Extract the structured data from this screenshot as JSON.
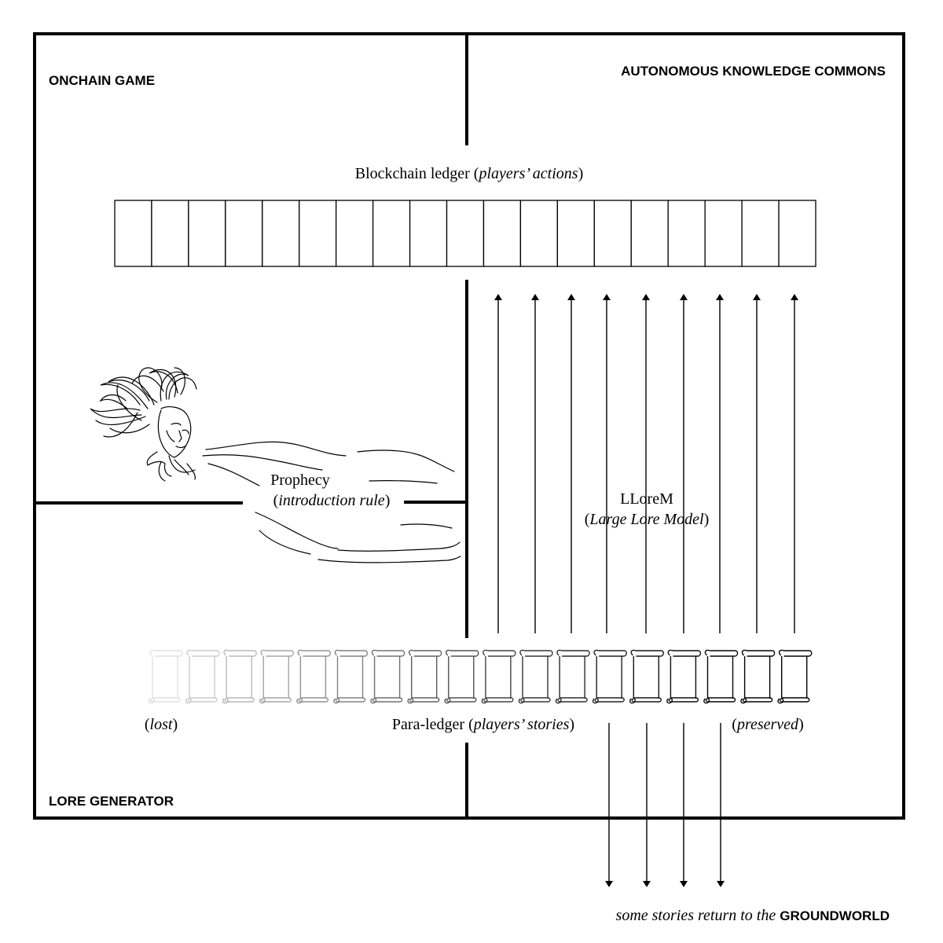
{
  "regions": {
    "onchain_game": "ONCHAIN GAME",
    "autonomous_knowledge_commons": "AUTONOMOUS KNOWLEDGE COMMONS",
    "lore_generator": "LORE GENERATOR"
  },
  "blockchain_ledger": {
    "label": "Blockchain ledger (",
    "label_italic": "players’ actions",
    "label_end": ")",
    "cell_count": 19
  },
  "prophecy": {
    "title": "Prophecy",
    "subtitle_open": "(",
    "subtitle_italic": "introduction rule",
    "subtitle_close": ")"
  },
  "llorem": {
    "title": "LLoreM",
    "subtitle_open": "(",
    "subtitle_italic": "Large Lore Model",
    "subtitle_close": ")"
  },
  "para_ledger": {
    "label": "Para-ledger (",
    "label_italic": "players’ stories",
    "label_end": ")",
    "scroll_count": 18,
    "lost_open": "(",
    "lost_italic": "lost",
    "lost_close": ")",
    "preserved_open": "(",
    "preserved_italic": "preserved",
    "preserved_close": ")"
  },
  "footer": {
    "italic_text": "some stories return to the ",
    "bold_text": "GROUNDWORLD"
  },
  "arrows": {
    "up_count": 9,
    "down_count": 4
  }
}
